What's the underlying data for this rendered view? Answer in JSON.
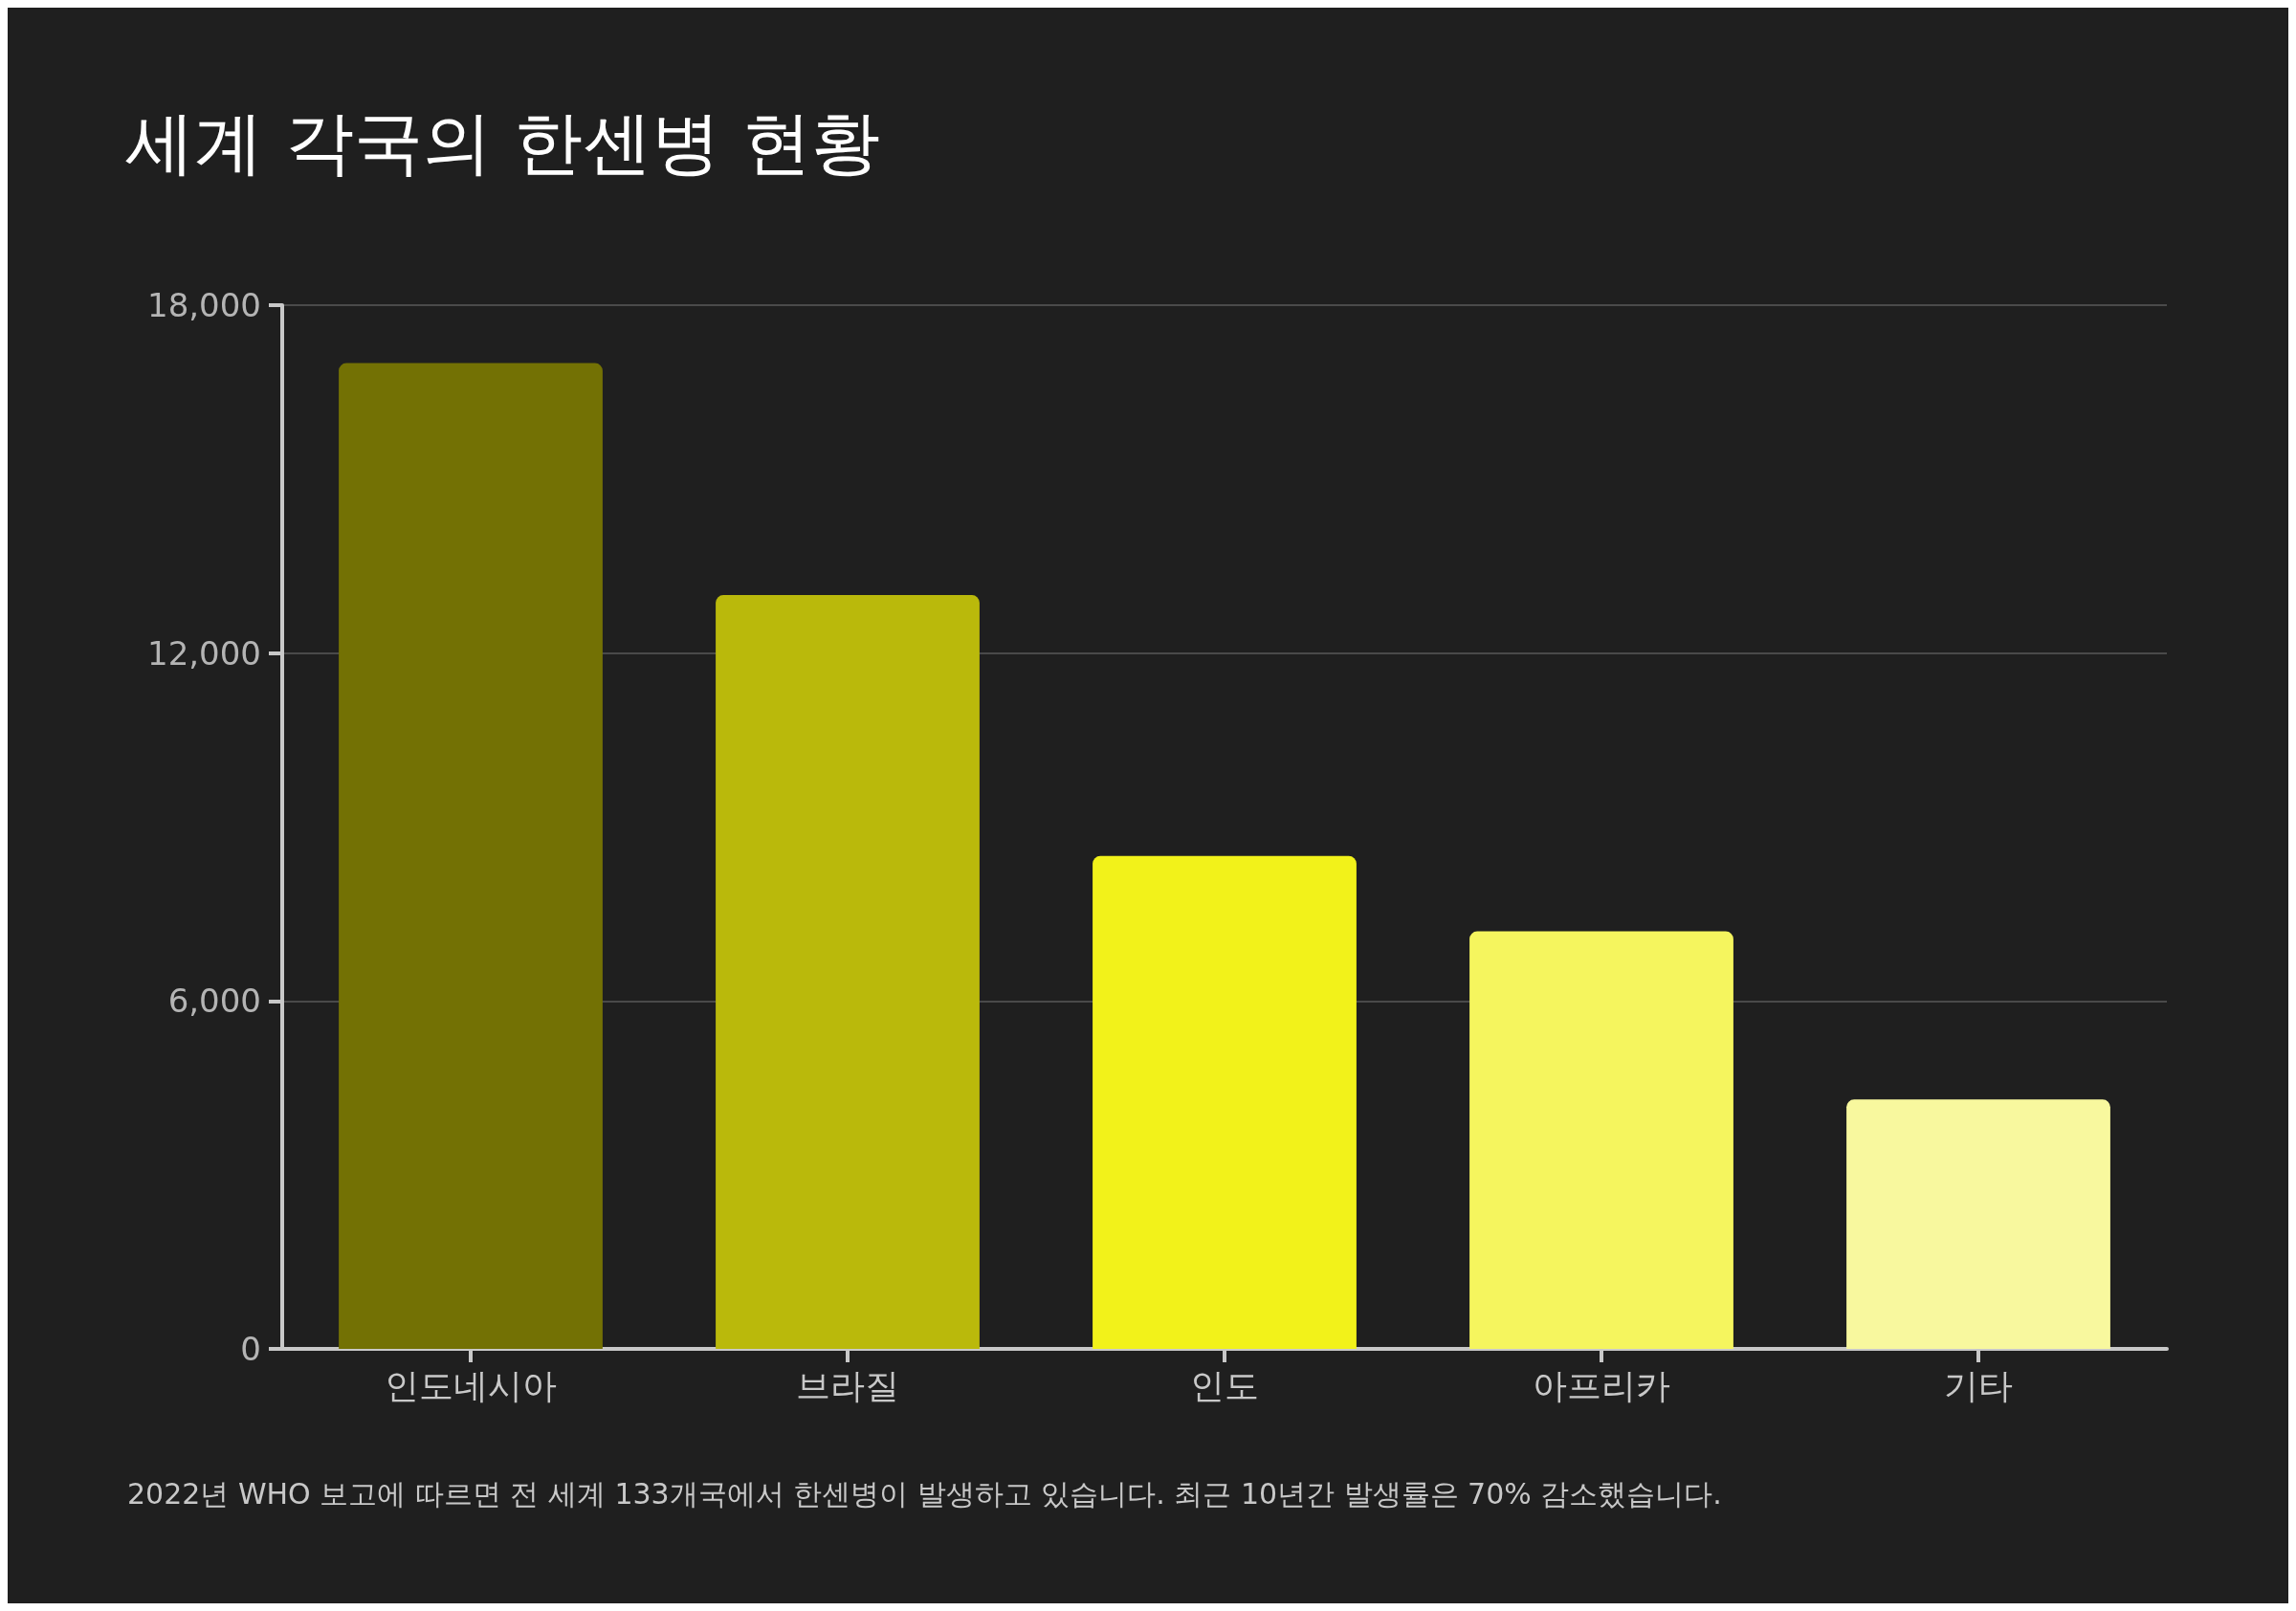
{
  "chart_data": {
    "type": "bar",
    "title": "세계 각국의 한센병 현황",
    "categories": [
      "인도네시아",
      "브라질",
      "인도",
      "아프리카",
      "기타"
    ],
    "values": [
      17000,
      13000,
      8500,
      7200,
      4300
    ],
    "colors": [
      "#737104",
      "#bab90b",
      "#f2f21a",
      "#f5f55e",
      "#f8f89e"
    ],
    "ylim": [
      0,
      18000
    ],
    "yticks": [
      {
        "value": 0,
        "label": "0"
      },
      {
        "value": 6000,
        "label": "6,000"
      },
      {
        "value": 12000,
        "label": "12,000"
      },
      {
        "value": 18000,
        "label": "18,000"
      }
    ],
    "grid": "y",
    "annotations": [
      "2022년 WHO 보고에 따르면 전 세계 133개국에서 한센병이 발생하고 있습니다. 최근 10년간 발생률은 70% 감소했습니다."
    ]
  }
}
